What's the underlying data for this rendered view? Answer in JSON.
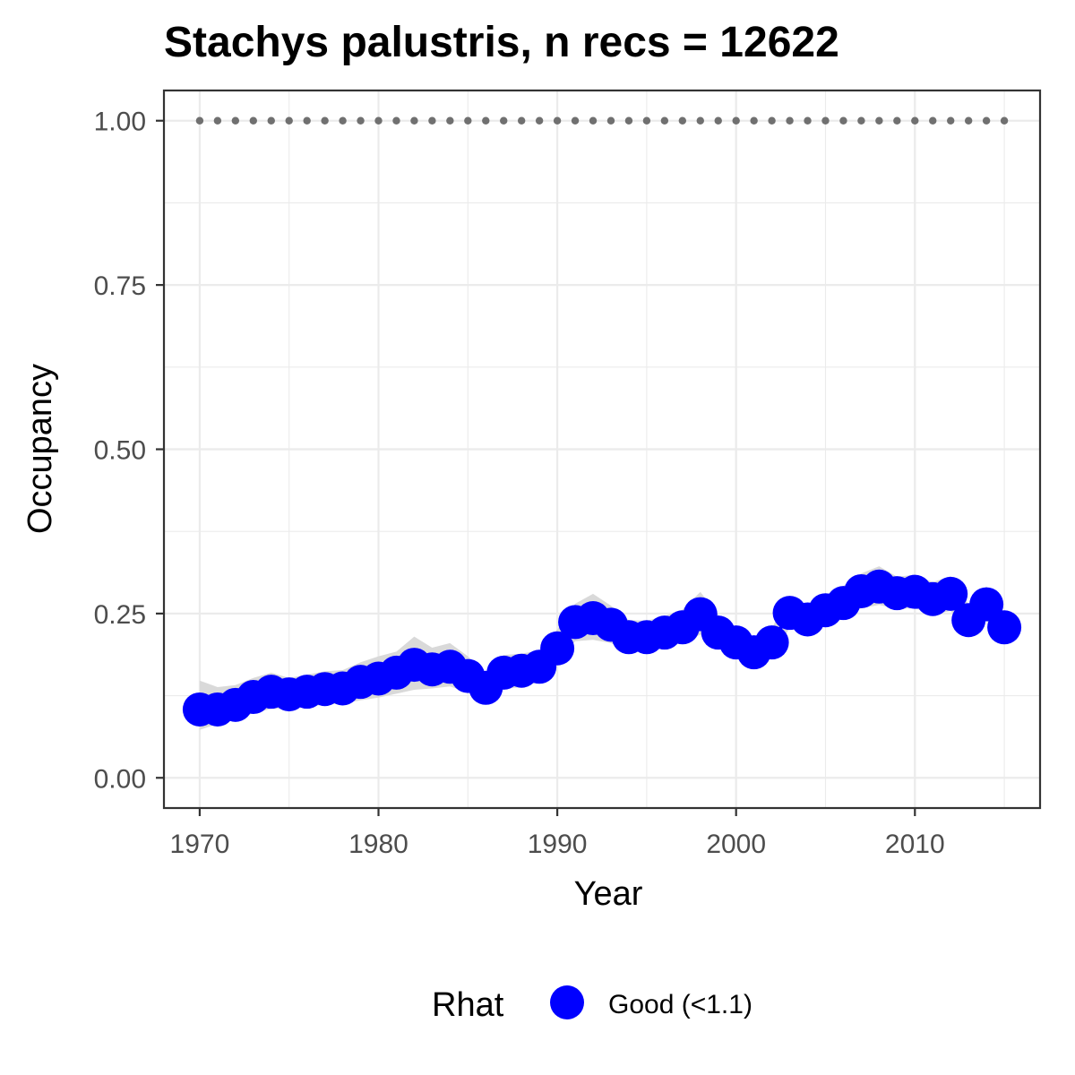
{
  "chart_data": {
    "type": "line",
    "title": "Stachys palustris, n recs = 12622",
    "xlabel": "Year",
    "ylabel": "Occupancy",
    "xlim": [
      1968,
      2017
    ],
    "ylim": [
      -0.046,
      1.046
    ],
    "x_ticks": [
      1970,
      1980,
      1990,
      2000,
      2010
    ],
    "x_tick_labels": [
      "1970",
      "1980",
      "1990",
      "2000",
      "2010"
    ],
    "y_ticks": [
      0,
      0.25,
      0.5,
      0.75,
      1.0
    ],
    "y_tick_labels": [
      "0.00",
      "0.25",
      "0.50",
      "0.75",
      "1.00"
    ],
    "grid": true,
    "legend_placement": "bottom",
    "legend": {
      "title": "Rhat",
      "entries": [
        {
          "label": "Good (<1.1)",
          "color": "#0000ff"
        }
      ]
    },
    "colors": {
      "points": "#0000ff",
      "ribbon": "#d9d9d9",
      "reference_line": "#707070",
      "grid": "#ebebeb",
      "panel_border": "#333333"
    },
    "reference_line": {
      "y": 1.0,
      "style": "dotted"
    },
    "x": [
      1970,
      1971,
      1972,
      1973,
      1974,
      1975,
      1976,
      1977,
      1978,
      1979,
      1980,
      1981,
      1982,
      1983,
      1984,
      1985,
      1986,
      1987,
      1988,
      1989,
      1990,
      1991,
      1992,
      1993,
      1994,
      1995,
      1996,
      1997,
      1998,
      1999,
      2000,
      2001,
      2002,
      2003,
      2004,
      2005,
      2006,
      2007,
      2008,
      2009,
      2010,
      2011,
      2012,
      2013,
      2014,
      2015
    ],
    "series": [
      {
        "name": "Good (<1.1)",
        "values": [
          0.104,
          0.104,
          0.111,
          0.123,
          0.131,
          0.127,
          0.131,
          0.135,
          0.136,
          0.146,
          0.151,
          0.16,
          0.172,
          0.165,
          0.169,
          0.155,
          0.137,
          0.16,
          0.163,
          0.169,
          0.197,
          0.237,
          0.243,
          0.233,
          0.214,
          0.214,
          0.221,
          0.229,
          0.249,
          0.221,
          0.206,
          0.191,
          0.206,
          0.251,
          0.241,
          0.255,
          0.266,
          0.284,
          0.291,
          0.281,
          0.283,
          0.272,
          0.28,
          0.24,
          0.264,
          0.229
        ],
        "lower": [
          0.073,
          0.082,
          0.09,
          0.098,
          0.105,
          0.105,
          0.108,
          0.111,
          0.113,
          0.118,
          0.122,
          0.128,
          0.134,
          0.136,
          0.139,
          0.13,
          0.119,
          0.135,
          0.138,
          0.146,
          0.172,
          0.208,
          0.21,
          0.205,
          0.192,
          0.193,
          0.2,
          0.205,
          0.218,
          0.198,
          0.186,
          0.175,
          0.186,
          0.228,
          0.222,
          0.234,
          0.244,
          0.258,
          0.263,
          0.257,
          0.258,
          0.248,
          0.254,
          0.218,
          0.239,
          0.208
        ],
        "upper": [
          0.148,
          0.138,
          0.141,
          0.152,
          0.16,
          0.152,
          0.157,
          0.162,
          0.164,
          0.176,
          0.185,
          0.192,
          0.215,
          0.198,
          0.205,
          0.185,
          0.16,
          0.187,
          0.189,
          0.194,
          0.226,
          0.265,
          0.28,
          0.262,
          0.24,
          0.239,
          0.246,
          0.256,
          0.283,
          0.248,
          0.229,
          0.211,
          0.228,
          0.277,
          0.262,
          0.278,
          0.292,
          0.311,
          0.322,
          0.306,
          0.309,
          0.298,
          0.307,
          0.264,
          0.291,
          0.252
        ]
      }
    ]
  }
}
